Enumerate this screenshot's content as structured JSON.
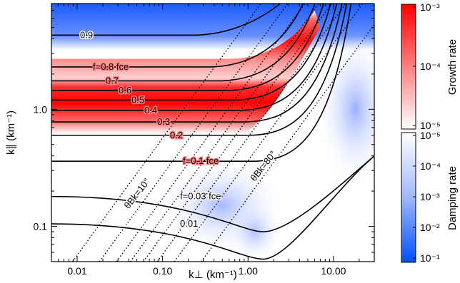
{
  "chart_data": {
    "type": "heatmap",
    "xlabel": "k⊥ (km⁻¹)",
    "ylabel": "k∥ (km⁻¹)",
    "x_scale": "log",
    "y_scale": "log",
    "xlim": [
      0.005,
      30
    ],
    "ylim": [
      0.05,
      8
    ],
    "x_ticks": [
      {
        "value": 0.01,
        "label": "0.01"
      },
      {
        "value": 0.1,
        "label": "0.10"
      },
      {
        "value": 1,
        "label": "1.00"
      },
      {
        "value": 10,
        "label": "10.00"
      }
    ],
    "y_ticks": [
      {
        "value": 0.1,
        "label": "0.1"
      },
      {
        "value": 1,
        "label": "1.0"
      }
    ],
    "frequency_contours": {
      "unit": "f_ce",
      "levels": [
        {
          "value": 0.9,
          "label": "0.9",
          "k_par": 4.3
        },
        {
          "value": 0.8,
          "label": "f=0.8 fce",
          "k_par": 2.3
        },
        {
          "value": 0.7,
          "label": "0.7",
          "k_par": 1.75
        },
        {
          "value": 0.6,
          "label": "0.6",
          "k_par": 1.45
        },
        {
          "value": 0.5,
          "label": "0.5",
          "k_par": 1.2
        },
        {
          "value": 0.4,
          "label": "0.4",
          "k_par": 0.98
        },
        {
          "value": 0.3,
          "label": "0.3",
          "k_par": 0.78
        },
        {
          "value": 0.2,
          "label": "0.2",
          "k_par": 0.6
        },
        {
          "value": 0.1,
          "label": "f=0.1 fce",
          "k_par": 0.36
        },
        {
          "value": 0.03,
          "label": "f=0.03 fce",
          "k_par": 0.18
        },
        {
          "value": 0.01,
          "label": "0.01",
          "k_par": 0.105
        }
      ]
    },
    "angle_lines": {
      "unit": "deg",
      "labels": [
        {
          "value": 10,
          "label": "θBk=10°"
        },
        {
          "value": 80,
          "label": "θBk=80°"
        }
      ],
      "count": 8
    },
    "growth_colorbar": {
      "title": "Growth rate",
      "scale": "log",
      "range": [
        1e-05,
        0.001
      ],
      "ticks": [
        "10⁻³",
        "10⁻⁴",
        "10⁻⁵"
      ],
      "color_max": "#ff0000",
      "color_min": "#ffffff"
    },
    "damping_colorbar": {
      "title": "Damping rate",
      "scale": "log",
      "range": [
        1e-05,
        0.1
      ],
      "ticks": [
        "10⁻⁵",
        "10⁻⁴",
        "10⁻³",
        "10⁻²",
        "10⁻¹"
      ],
      "color_max": "#0050ff",
      "color_min": "#ffffff"
    }
  }
}
